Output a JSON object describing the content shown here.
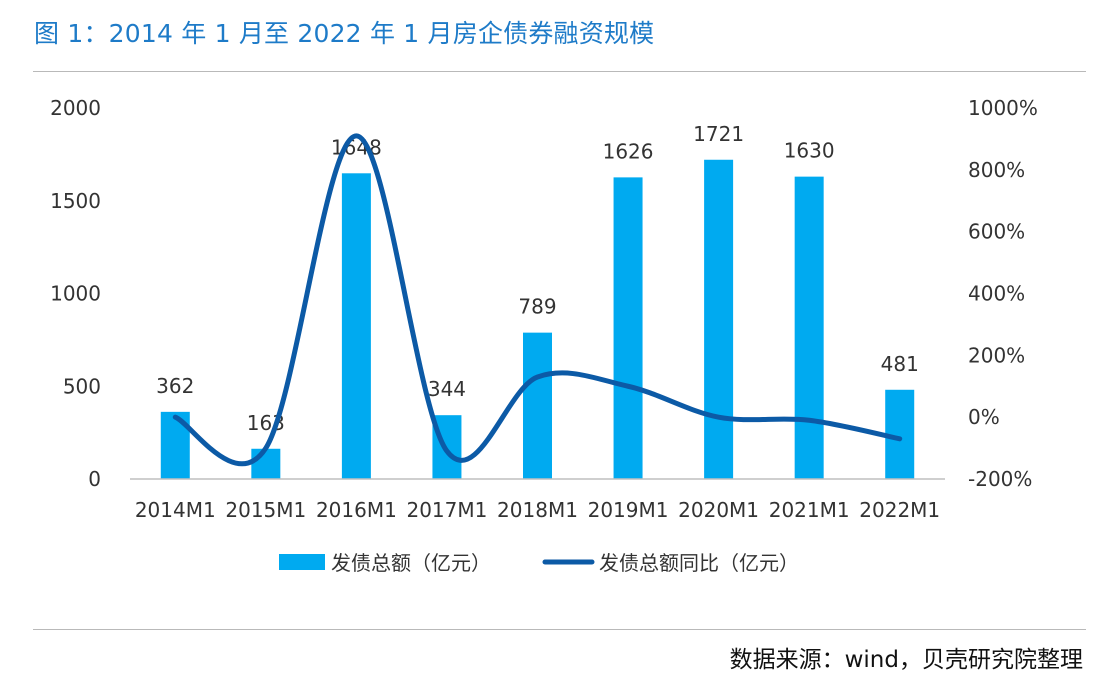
{
  "title": "图 1：2014 年 1 月至 2022 年 1 月房企债券融资规模",
  "source": "数据来源：wind，贝壳研究院整理",
  "colors": {
    "bar": "#00aaf0",
    "line": "#0c5aa6",
    "title": "#1e7bc8"
  },
  "chart_data": {
    "type": "bar",
    "categories": [
      "2014M1",
      "2015M1",
      "2016M1",
      "2017M1",
      "2018M1",
      "2019M1",
      "2020M1",
      "2021M1",
      "2022M1"
    ],
    "series": [
      {
        "name": "发债总额（亿元）",
        "type": "bar",
        "axis": "left",
        "values": [
          362,
          163,
          1648,
          344,
          789,
          1626,
          1721,
          1630,
          481
        ],
        "labels": [
          "362",
          "163",
          "1648",
          "344",
          "789",
          "1626",
          "1721",
          "1630",
          "481"
        ]
      },
      {
        "name": "发债总额同比（亿元）",
        "type": "line",
        "axis": "right",
        "unit": "%",
        "values": [
          0,
          -100,
          910,
          -110,
          130,
          100,
          0,
          -10,
          -70
        ]
      }
    ],
    "y_left": {
      "ylim": [
        0,
        2000
      ],
      "ticks": [
        "0",
        "500",
        "1000",
        "1500",
        "2000"
      ],
      "tick_values": [
        0,
        500,
        1000,
        1500,
        2000
      ]
    },
    "y_right": {
      "ylim": [
        -200,
        1000
      ],
      "ticks": [
        "-200%",
        "0%",
        "200%",
        "400%",
        "600%",
        "800%",
        "1000%"
      ],
      "tick_values": [
        -200,
        0,
        200,
        400,
        600,
        800,
        1000
      ]
    },
    "legend_position": "bottom",
    "grid": false
  }
}
